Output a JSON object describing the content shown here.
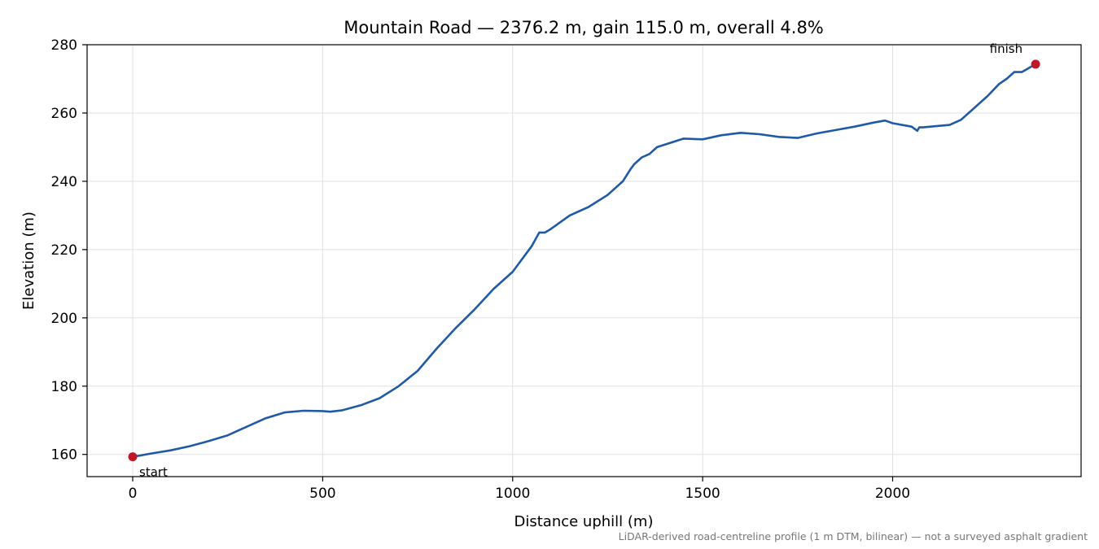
{
  "chart_data": {
    "type": "line",
    "title": "Mountain Road — 2376.2 m, gain 115.0 m, overall 4.8%",
    "xlabel": "Distance uphill (m)",
    "ylabel": "Elevation (m)",
    "footnote": "LiDAR-derived road-centreline profile (1 m DTM, bilinear) — not a surveyed asphalt gradient",
    "xlim": [
      -120,
      2496
    ],
    "ylim": [
      153.5,
      280
    ],
    "xticks": [
      0,
      500,
      1000,
      1500,
      2000
    ],
    "yticks": [
      160,
      180,
      200,
      220,
      240,
      260,
      280
    ],
    "grid": true,
    "colors": {
      "line": "#1f5aa6",
      "marker": "#c0182a",
      "grid": "#e0e0e0",
      "footnote": "#777777"
    },
    "series": [
      {
        "x": [
          0,
          50,
          100,
          150,
          200,
          250,
          300,
          350,
          400,
          450,
          500,
          520,
          550,
          600,
          650,
          700,
          750,
          800,
          850,
          900,
          950,
          1000,
          1050,
          1070,
          1085,
          1100,
          1150,
          1200,
          1250,
          1290,
          1310,
          1320,
          1340,
          1360,
          1380,
          1450,
          1500,
          1550,
          1600,
          1650,
          1700,
          1750,
          1800,
          1850,
          1900,
          1950,
          1980,
          2000,
          2050,
          2065,
          2070,
          2080,
          2100,
          2150,
          2180,
          2200,
          2250,
          2280,
          2300,
          2320,
          2340,
          2376.2
        ],
        "y": [
          159.3,
          160.3,
          161.2,
          162.4,
          163.9,
          165.6,
          168.1,
          170.6,
          172.3,
          172.8,
          172.7,
          172.5,
          172.9,
          174.4,
          176.5,
          180.0,
          184.5,
          191.0,
          197.0,
          202.5,
          208.5,
          213.5,
          221.0,
          225.0,
          225.0,
          226.0,
          230.0,
          232.5,
          236.0,
          240.0,
          243.5,
          245.0,
          247.0,
          248.0,
          250.0,
          252.5,
          252.3,
          253.5,
          254.2,
          253.8,
          253.0,
          252.7,
          254.0,
          255.0,
          256.0,
          257.2,
          257.8,
          257.0,
          256.0,
          254.8,
          255.8,
          255.8,
          256.0,
          256.5,
          258.0,
          260.0,
          265.0,
          268.5,
          270.0,
          272.0,
          272.0,
          274.3
        ]
      }
    ],
    "annotations": [
      {
        "text": "start",
        "x": 0,
        "y": 159.3
      },
      {
        "text": "finish",
        "x": 2376.2,
        "y": 274.3
      }
    ]
  }
}
